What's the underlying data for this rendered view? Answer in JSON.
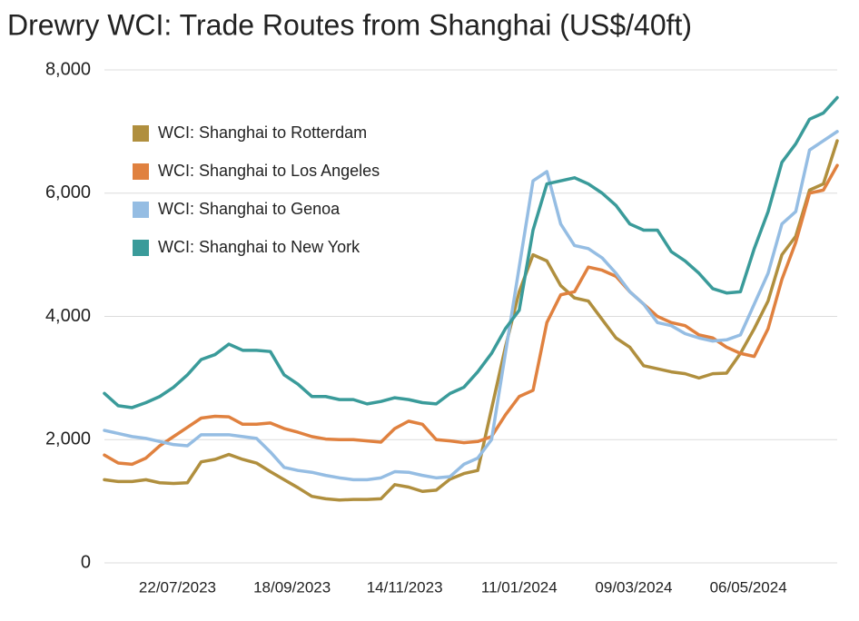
{
  "chart_data": {
    "type": "line",
    "title": "Drewry WCI: Trade Routes from Shanghai (US$/40ft)",
    "x": [
      "2023-06-15",
      "2023-06-22",
      "2023-06-29",
      "2023-07-06",
      "2023-07-13",
      "2023-07-20",
      "2023-07-27",
      "2023-08-03",
      "2023-08-10",
      "2023-08-17",
      "2023-08-24",
      "2023-08-31",
      "2023-09-07",
      "2023-09-14",
      "2023-09-21",
      "2023-09-28",
      "2023-10-05",
      "2023-10-12",
      "2023-10-19",
      "2023-10-26",
      "2023-11-02",
      "2023-11-09",
      "2023-11-16",
      "2023-11-23",
      "2023-11-30",
      "2023-12-07",
      "2023-12-14",
      "2023-12-21",
      "2023-12-28",
      "2024-01-04",
      "2024-01-11",
      "2024-01-18",
      "2024-01-25",
      "2024-02-01",
      "2024-02-08",
      "2024-02-15",
      "2024-02-22",
      "2024-02-29",
      "2024-03-07",
      "2024-03-14",
      "2024-03-21",
      "2024-03-28",
      "2024-04-04",
      "2024-04-11",
      "2024-04-18",
      "2024-04-25",
      "2024-05-02",
      "2024-05-09",
      "2024-05-16",
      "2024-05-23",
      "2024-05-30",
      "2024-06-06",
      "2024-06-13",
      "2024-06-20"
    ],
    "xlim": [
      "2023-06-15",
      "2024-06-20"
    ],
    "xticks": [
      {
        "value": "2023-07-22",
        "label": "22/07/2023"
      },
      {
        "value": "2023-09-18",
        "label": "18/09/2023"
      },
      {
        "value": "2023-11-14",
        "label": "14/11/2023"
      },
      {
        "value": "2024-01-11",
        "label": "11/01/2024"
      },
      {
        "value": "2024-03-09",
        "label": "09/03/2024"
      },
      {
        "value": "2024-05-06",
        "label": "06/05/2024"
      }
    ],
    "ylim": [
      0,
      8000
    ],
    "yticks": [
      0,
      {
        "value": 2000,
        "label": "2,000"
      },
      {
        "value": 4000,
        "label": "4,000"
      },
      {
        "value": 6000,
        "label": "6,000"
      },
      {
        "value": 8000,
        "label": "8,000"
      }
    ],
    "grid": true,
    "legend": "upper left",
    "series": [
      {
        "name": "WCI: Shanghai to Rotterdam",
        "color": "#b08f3e",
        "values": [
          1350,
          1320,
          1320,
          1350,
          1300,
          1290,
          1300,
          1640,
          1680,
          1760,
          1680,
          1620,
          1480,
          1350,
          1220,
          1080,
          1040,
          1020,
          1030,
          1030,
          1040,
          1270,
          1230,
          1160,
          1180,
          1360,
          1450,
          1500,
          2500,
          3500,
          4400,
          5000,
          4900,
          4500,
          4300,
          4250,
          3950,
          3650,
          3500,
          3200,
          3150,
          3100,
          3070,
          3000,
          3070,
          3080,
          3400,
          3800,
          4250,
          5000,
          5300,
          6050,
          6150,
          6850
        ]
      },
      {
        "name": "WCI: Shanghai to Los Angeles",
        "color": "#e0813f",
        "values": [
          1750,
          1620,
          1600,
          1700,
          1900,
          2050,
          2200,
          2350,
          2380,
          2370,
          2250,
          2250,
          2270,
          2180,
          2120,
          2050,
          2010,
          2000,
          2000,
          1980,
          1960,
          2180,
          2300,
          2250,
          2000,
          1980,
          1950,
          1970,
          2050,
          2400,
          2700,
          2800,
          3900,
          4350,
          4400,
          4800,
          4750,
          4650,
          4400,
          4200,
          4000,
          3900,
          3850,
          3700,
          3650,
          3500,
          3400,
          3350,
          3800,
          4600,
          5200,
          6000,
          6050,
          6450
        ]
      },
      {
        "name": "WCI: Shanghai to Genoa",
        "color": "#95bde3",
        "values": [
          2150,
          2100,
          2050,
          2020,
          1970,
          1920,
          1900,
          2080,
          2080,
          2080,
          2050,
          2020,
          1800,
          1550,
          1500,
          1470,
          1420,
          1380,
          1350,
          1350,
          1380,
          1480,
          1470,
          1420,
          1380,
          1400,
          1600,
          1700,
          2000,
          3400,
          4800,
          6200,
          6350,
          5500,
          5150,
          5100,
          4950,
          4700,
          4400,
          4200,
          3900,
          3850,
          3720,
          3650,
          3600,
          3620,
          3700,
          4200,
          4700,
          5500,
          5700,
          6700,
          6850,
          7000
        ]
      },
      {
        "name": "WCI: Shanghai to New York",
        "color": "#3a9b9a",
        "values": [
          2750,
          2550,
          2520,
          2600,
          2700,
          2850,
          3050,
          3300,
          3380,
          3550,
          3450,
          3450,
          3430,
          3050,
          2900,
          2700,
          2700,
          2650,
          2650,
          2580,
          2620,
          2680,
          2650,
          2600,
          2580,
          2750,
          2850,
          3100,
          3400,
          3800,
          4100,
          5400,
          6150,
          6200,
          6250,
          6150,
          6000,
          5800,
          5500,
          5400,
          5400,
          5050,
          4900,
          4700,
          4450,
          4380,
          4400,
          5100,
          5700,
          6500,
          6800,
          7200,
          7300,
          7550
        ]
      }
    ]
  }
}
